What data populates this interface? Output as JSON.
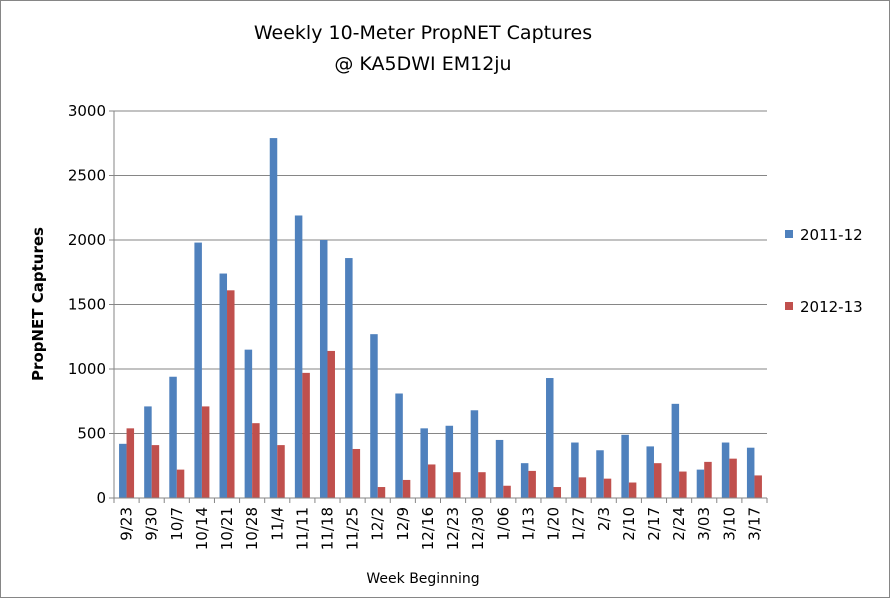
{
  "chart_data": {
    "type": "bar",
    "title": "Weekly 10-Meter PropNET Captures",
    "subtitle": "@ KA5DWI EM12ju",
    "xlabel": "Week Beginning",
    "ylabel": "PropNET Captures",
    "ylim": [
      0,
      3000
    ],
    "yticks": [
      "0",
      "500",
      "1000",
      "1500",
      "2000",
      "2500",
      "3000"
    ],
    "grid": "horizontal",
    "legend_position": "right",
    "categories": [
      "9/23",
      "9/30",
      "10/7",
      "10/14",
      "10/21",
      "10/28",
      "11/4",
      "11/11",
      "11/18",
      "11/25",
      "12/2",
      "12/9",
      "12/16",
      "12/23",
      "12/30",
      "1/06",
      "1/13",
      "1/20",
      "1/27",
      "2/3",
      "2/10",
      "2/17",
      "2/24",
      "3/03",
      "3/10",
      "3/17"
    ],
    "series": [
      {
        "name": "2011-12",
        "color": "#4f81bd",
        "values": [
          420,
          710,
          940,
          1980,
          1740,
          1150,
          2790,
          2190,
          2000,
          1860,
          1270,
          810,
          540,
          560,
          680,
          450,
          270,
          930,
          430,
          370,
          490,
          400,
          730,
          220,
          430,
          390
        ]
      },
      {
        "name": "2012-13",
        "color": "#c0504d",
        "values": [
          540,
          410,
          220,
          710,
          1610,
          580,
          410,
          970,
          1140,
          380,
          85,
          140,
          260,
          200,
          200,
          95,
          210,
          85,
          160,
          150,
          120,
          270,
          205,
          280,
          305,
          175
        ]
      }
    ]
  }
}
